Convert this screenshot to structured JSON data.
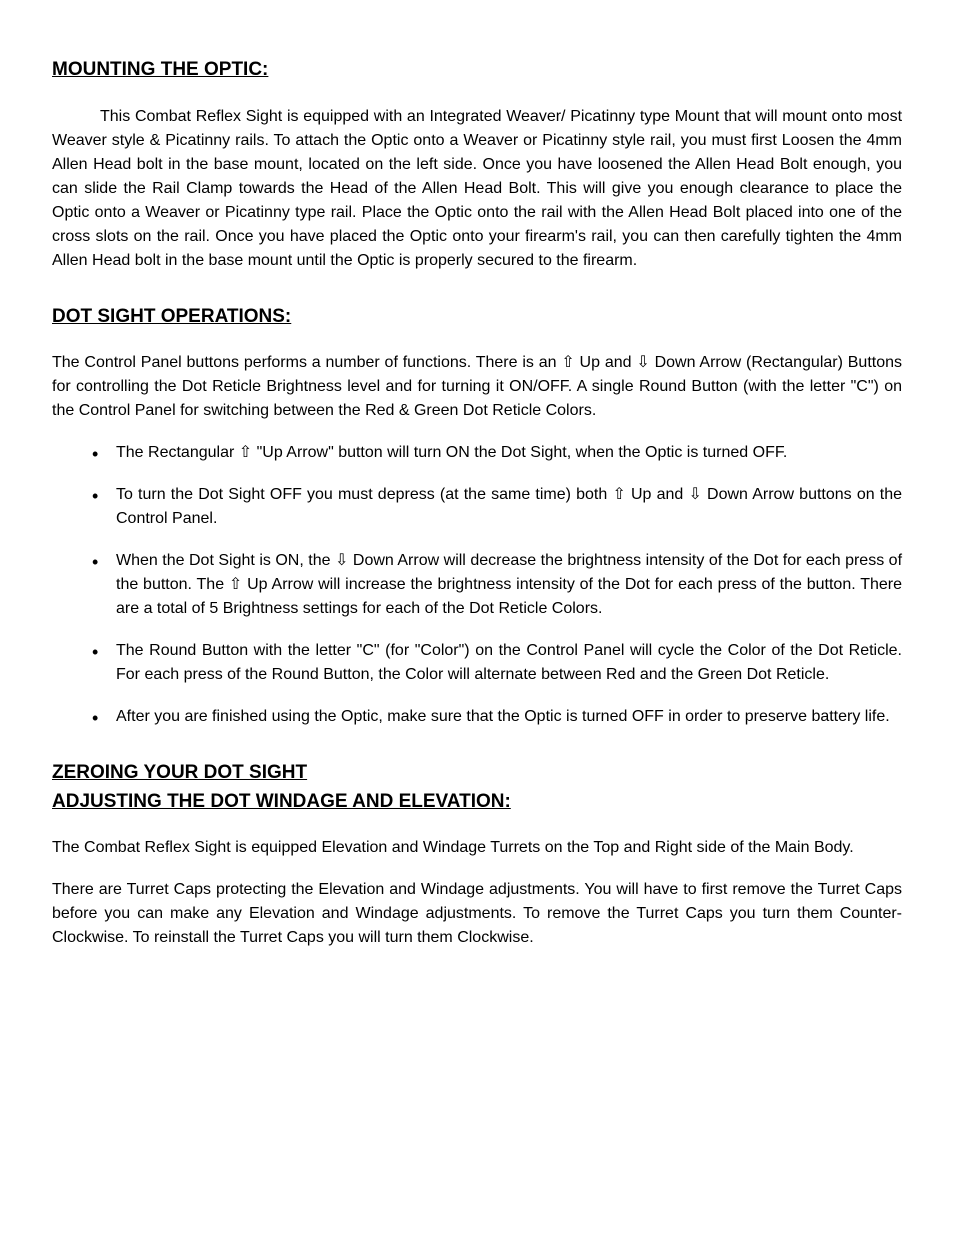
{
  "sections": {
    "mounting": {
      "heading": "MOUNTING THE OPTIC:",
      "p1_pre": "This ",
      "p1_product": "Combat Reflex Sight",
      "p1_post": " is equipped with an Integrated Weaver/ Picatinny type Mount that will mount onto most Weaver style & Picatinny rails. To attach the Optic onto a Weaver or Picatinny style rail, you must first Loosen the 4mm Allen Head bolt in the base mount, located on the left side. Once you have loosened the Allen Head Bolt enough, you can slide the Rail Clamp towards the Head of the Allen Head Bolt. This will give you enough clearance to place the Optic onto a Weaver or Picatinny type rail. Place the Optic onto the rail with the Allen Head Bolt placed into one of the cross slots on the rail. Once you have placed the Optic onto your firearm's rail, you can then carefully tighten the 4mm Allen Head bolt in the base mount until the Optic is properly secured to the firearm."
    },
    "operations": {
      "heading": "DOT SIGHT OPERATIONS:",
      "intro_a": "The Control Panel buttons performs a number of functions. There is an ",
      "intro_up": "⇧",
      "intro_b": " Up and ",
      "intro_down": "⇩",
      "intro_c": " Down Arrow (Rectangular) Buttons for controlling the Dot Reticle Brightness level and for turning it ON/OFF. A single Round Button (with the letter \"C\") on the Control Panel for switching between the Red & Green Dot Reticle Colors.",
      "li1_a": "The Rectangular ",
      "li1_up": "⇧",
      "li1_b": " \"Up Arrow\" button will turn ON the Dot Sight, when the Optic is turned OFF.",
      "li2_a": "To turn the Dot Sight OFF you must depress (at the same time) both ",
      "li2_up": "⇧",
      "li2_b": " Up and ",
      "li2_down": "⇩",
      "li2_c": " Down Arrow buttons on the Control Panel.",
      "li3_a": "When the Dot Sight is ON, the ",
      "li3_down": "⇩",
      "li3_b": " Down Arrow will decrease the brightness intensity of the Dot for each press of the button. The ",
      "li3_up": "⇧",
      "li3_c": " Up Arrow will increase the brightness intensity of the Dot for each press of the button. There are a total of 5 Brightness settings for each of the Dot Reticle Colors.",
      "li4": "The Round Button with the letter \"C\" (for \"Color\") on the Control Panel will cycle the Color of the Dot Reticle. For each press of the Round Button, the Color will alternate between Red and the Green Dot Reticle.",
      "li5": "After you are finished using the Optic, make sure that the Optic is turned OFF in order to preserve battery life."
    },
    "zeroing": {
      "heading_line1": "ZEROING YOUR DOT SIGHT",
      "heading_line2": "ADJUSTING THE DOT WINDAGE AND ELEVATION:",
      "p1": "The Combat Reflex Sight is equipped Elevation and Windage Turrets on the Top and Right side of the Main Body.",
      "p2": "There are Turret Caps protecting the Elevation and Windage adjustments. You will have to first remove the Turret Caps before you can make any Elevation and Windage adjustments. To remove the Turret Caps you turn them Counter-Clockwise. To reinstall the Turret Caps you will turn them Clockwise."
    }
  }
}
